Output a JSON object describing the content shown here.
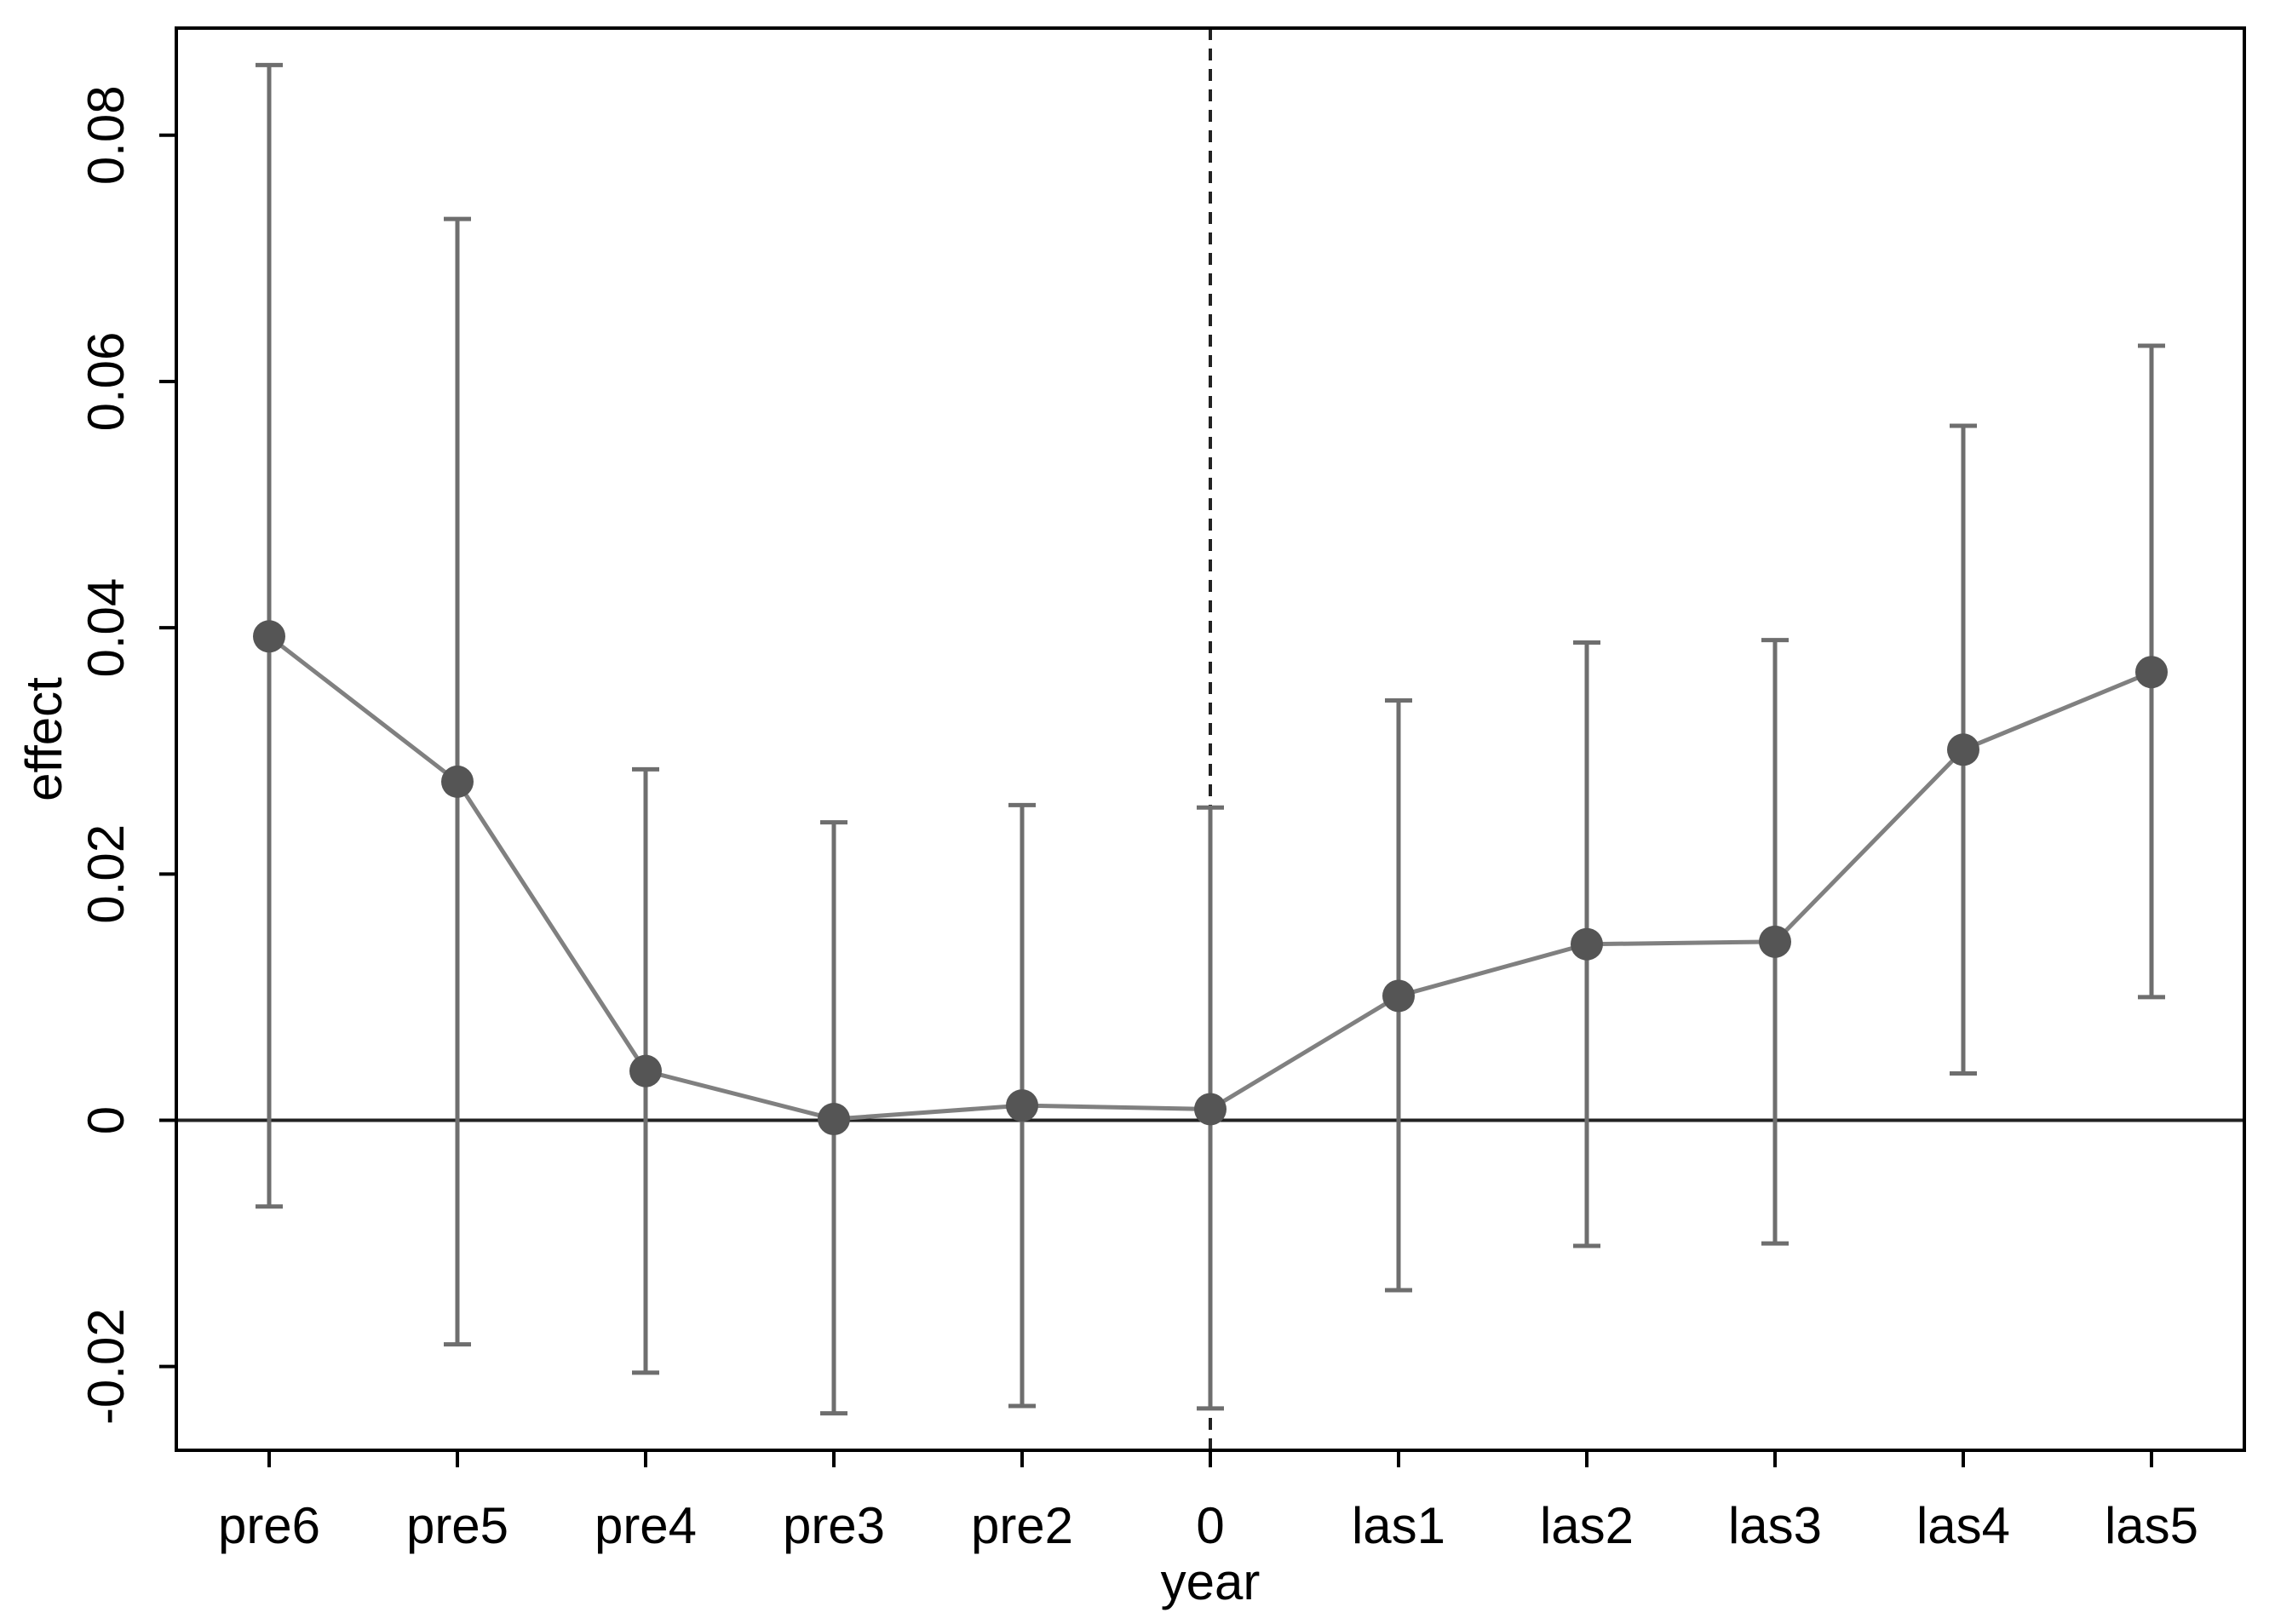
{
  "chart_data": {
    "type": "line",
    "title": "",
    "xlabel": "year",
    "ylabel": "effect",
    "categories": [
      "pre6",
      "pre5",
      "pre4",
      "pre3",
      "pre2",
      "0",
      "las1",
      "las2",
      "las3",
      "las4",
      "las5"
    ],
    "series": [
      {
        "values": [
          0.0393,
          0.0275,
          0.004,
          0.0001,
          0.0012,
          0.0009,
          0.0101,
          0.0143,
          0.0145,
          0.0301,
          0.0364
        ],
        "lower": [
          -0.007,
          -0.0182,
          -0.0205,
          -0.0238,
          -0.0232,
          -0.0234,
          -0.0138,
          -0.0102,
          -0.01,
          0.0038,
          0.01
        ],
        "upper": [
          0.0857,
          0.0732,
          0.0285,
          0.0242,
          0.0256,
          0.0254,
          0.0341,
          0.0388,
          0.039,
          0.0564,
          0.0629
        ]
      }
    ],
    "y_ticks": [
      "-0.02",
      "0",
      "0.02",
      "0.04",
      "0.06",
      "0.08"
    ],
    "y_tick_values": [
      -0.02,
      0,
      0.02,
      0.04,
      0.06,
      0.08
    ],
    "ylim": [
      -0.0268,
      0.0887
    ],
    "reference_lines": {
      "horizontal_y": 0,
      "vertical_x_category": "0",
      "vertical_style": "dashed"
    },
    "grid": false,
    "legend": "none",
    "colors": {
      "series": "#808080",
      "markers": "#555555",
      "error_bars": "#6e6e6e",
      "axes": "#000000",
      "reference": "#222222"
    }
  }
}
